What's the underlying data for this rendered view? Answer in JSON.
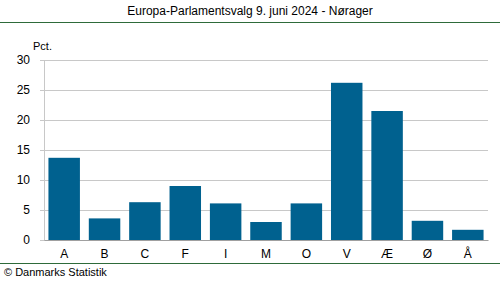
{
  "chart_data": {
    "type": "bar",
    "title": "Europa-Parlamentsvalg 9. juni 2024 - Nørager",
    "y_label": "Pct.",
    "source": "© Danmarks Statistik",
    "categories": [
      "A",
      "B",
      "C",
      "F",
      "I",
      "M",
      "O",
      "V",
      "Æ",
      "Ø",
      "Å"
    ],
    "values": [
      13.7,
      3.6,
      6.3,
      9.0,
      6.1,
      3.0,
      6.1,
      26.2,
      21.5,
      3.2,
      1.7
    ],
    "color": "#00618f",
    "ylim": [
      0,
      30
    ],
    "yticks": [
      0,
      5,
      10,
      15,
      20,
      25,
      30
    ],
    "grid": true
  }
}
